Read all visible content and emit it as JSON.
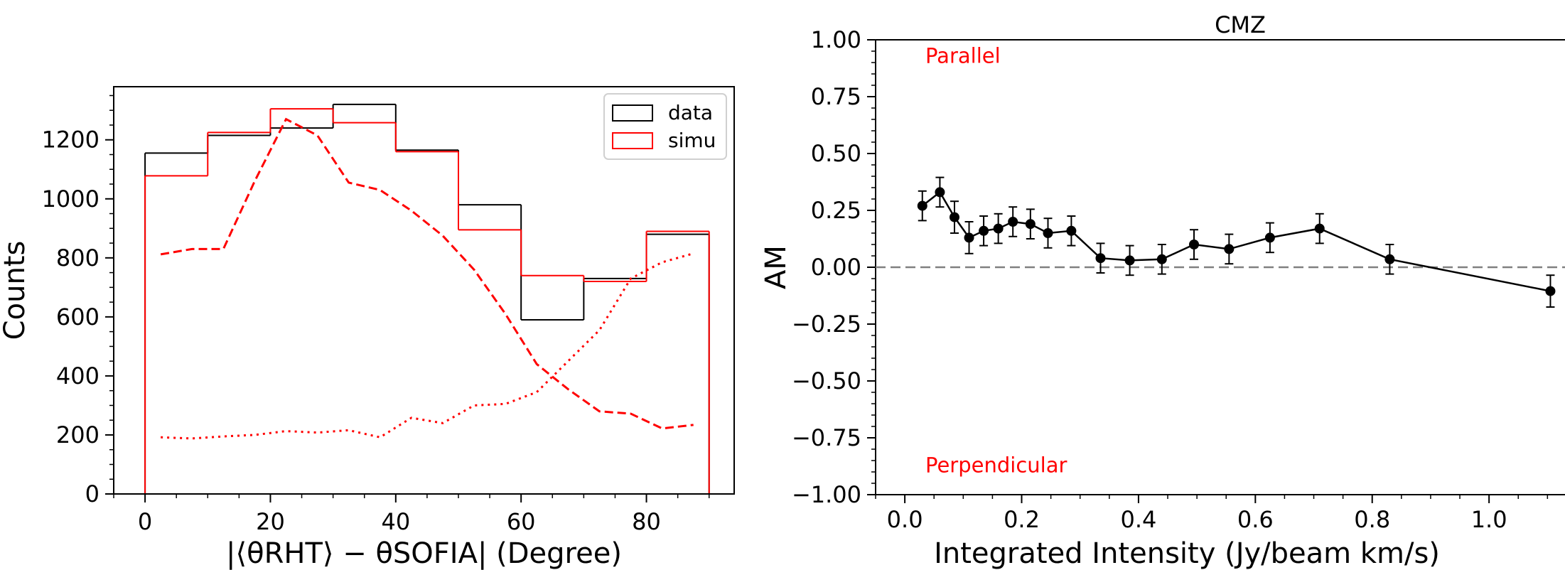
{
  "chart_data": [
    {
      "type": "histogram",
      "title": "",
      "xlabel": "|⟨θRHT⟩ − θSOFIA| (Degree)",
      "ylabel": "Counts",
      "xlim": [
        -5,
        94
      ],
      "ylim": [
        0,
        1380
      ],
      "xticks": [
        0,
        20,
        40,
        60,
        80
      ],
      "yticks": [
        0,
        200,
        400,
        600,
        800,
        1000,
        1200
      ],
      "grid": false,
      "legend": {
        "location": "top-right",
        "entries": [
          "data",
          "simu"
        ]
      },
      "bin_edges": [
        0,
        10,
        20,
        30,
        40,
        50,
        60,
        70,
        80,
        90
      ],
      "series": [
        {
          "name": "data",
          "style": "step",
          "color": "#000000",
          "values": [
            1155,
            1215,
            1240,
            1320,
            1165,
            980,
            590,
            730,
            880
          ]
        },
        {
          "name": "simu",
          "style": "step",
          "color": "#ff0000",
          "values": [
            1078,
            1225,
            1305,
            1258,
            1160,
            895,
            740,
            720,
            890
          ]
        },
        {
          "style": "dashed",
          "color": "#ff0000",
          "x": [
            2.5,
            7.5,
            12.5,
            17.5,
            22.5,
            27.5,
            32.5,
            37.5,
            42.5,
            47.5,
            52.5,
            57.5,
            62.5,
            67.5,
            72.5,
            77.5,
            82.5,
            87.5
          ],
          "values": [
            812,
            830,
            830,
            1060,
            1270,
            1215,
            1055,
            1030,
            960,
            875,
            760,
            610,
            440,
            355,
            280,
            272,
            222,
            234
          ]
        },
        {
          "style": "dotted",
          "color": "#ff0000",
          "x": [
            2.5,
            7.5,
            12.5,
            17.5,
            22.5,
            27.5,
            32.5,
            37.5,
            42.5,
            47.5,
            52.5,
            57.5,
            62.5,
            67.5,
            72.5,
            77.5,
            82.5,
            87.5
          ],
          "values": [
            192,
            188,
            195,
            200,
            213,
            208,
            216,
            192,
            258,
            240,
            300,
            305,
            345,
            450,
            555,
            730,
            785,
            815
          ]
        }
      ]
    },
    {
      "type": "line",
      "title": "CMZ",
      "xlabel": "Integrated Intensity (Jy/beam km/s)",
      "ylabel": "AM",
      "xlim": [
        -0.05,
        1.13
      ],
      "ylim": [
        -1.0,
        1.0
      ],
      "xticks": [
        "0.0",
        "0.2",
        "0.4",
        "0.6",
        "0.8",
        "1.0"
      ],
      "yticks": [
        "−1.00",
        "−0.75",
        "−0.50",
        "−0.25",
        "0.00",
        "0.25",
        "0.50",
        "0.75",
        "1.00"
      ],
      "grid": false,
      "reference_line": {
        "y": 0.0,
        "style": "dashed",
        "color": "#808080"
      },
      "annotations": [
        {
          "text": "Parallel",
          "color": "#ff0000",
          "x": 0.0,
          "y": 0.93
        },
        {
          "text": "Perpendicular",
          "color": "#ff0000",
          "x": 0.0,
          "y": -0.87
        }
      ],
      "series": [
        {
          "color": "#000000",
          "marker": "circle",
          "x": [
            0.03,
            0.06,
            0.085,
            0.11,
            0.135,
            0.16,
            0.185,
            0.215,
            0.245,
            0.285,
            0.335,
            0.385,
            0.44,
            0.495,
            0.555,
            0.625,
            0.71,
            0.83,
            1.105
          ],
          "y": [
            0.27,
            0.33,
            0.22,
            0.13,
            0.16,
            0.17,
            0.2,
            0.19,
            0.15,
            0.16,
            0.04,
            0.03,
            0.035,
            0.1,
            0.08,
            0.13,
            0.17,
            0.035,
            -0.105
          ],
          "error": [
            0.065,
            0.065,
            0.07,
            0.07,
            0.065,
            0.065,
            0.065,
            0.065,
            0.065,
            0.065,
            0.065,
            0.065,
            0.065,
            0.065,
            0.065,
            0.065,
            0.065,
            0.065,
            0.07
          ]
        }
      ]
    }
  ]
}
